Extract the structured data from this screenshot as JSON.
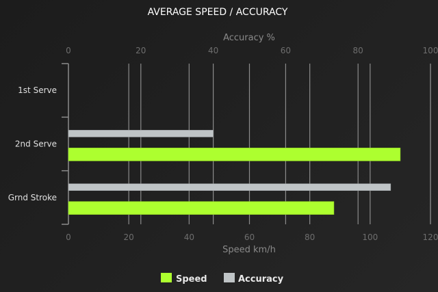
{
  "chart_data": {
    "type": "bar",
    "orientation": "horizontal",
    "title": "AVERAGE SPEED / ACCURACY",
    "categories": [
      "1st Serve",
      "2nd Serve",
      "Grnd Stroke"
    ],
    "series": [
      {
        "name": "Speed",
        "axis": "bottom",
        "color": "#adff2f",
        "values": [
          null,
          110,
          88
        ]
      },
      {
        "name": "Accuracy",
        "axis": "top",
        "color": "#bfc4c6",
        "values": [
          null,
          40,
          89
        ]
      }
    ],
    "xaxis_bottom": {
      "label": "Speed km/h",
      "range": [
        0,
        120
      ],
      "ticks": [
        0,
        20,
        40,
        60,
        80,
        100,
        120
      ]
    },
    "xaxis_top": {
      "label": "Accuracy %",
      "range": [
        0,
        100
      ],
      "ticks": [
        0,
        20,
        40,
        60,
        80,
        100
      ]
    },
    "grid": true,
    "legend": {
      "position": "bottom",
      "entries": [
        "Speed",
        "Accuracy"
      ]
    }
  }
}
